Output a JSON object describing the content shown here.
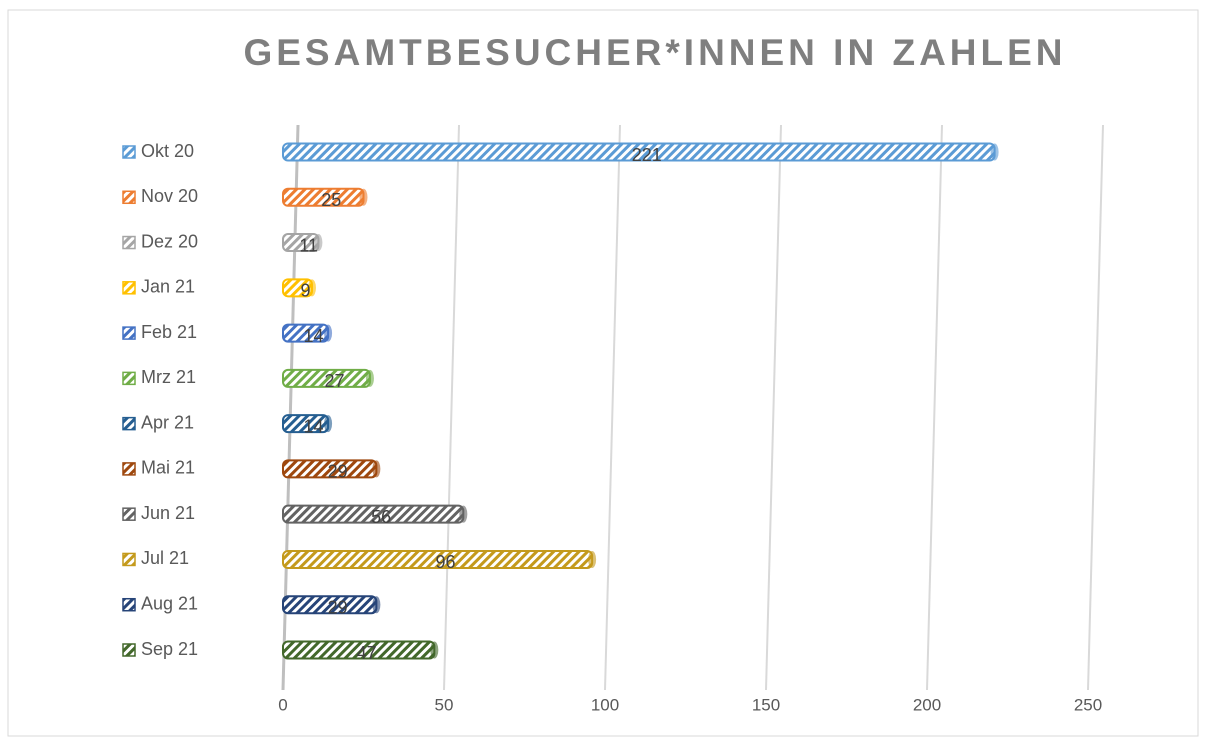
{
  "chart_data": {
    "type": "bar",
    "title": "GESAMTBESUCHER*INNEN IN ZAHLEN",
    "categories": [
      "Okt 20",
      "Nov 20",
      "Dez 20",
      "Jan 21",
      "Feb 21",
      "Mrz 21",
      "Apr 21",
      "Mai 21",
      "Jun 21",
      "Jul 21",
      "Aug 21",
      "Sep 21"
    ],
    "values": [
      221,
      25,
      11,
      9,
      14,
      27,
      14,
      29,
      56,
      96,
      29,
      47
    ],
    "colors": [
      "#5b9bd5",
      "#ed7d31",
      "#a5a5a5",
      "#ffc000",
      "#4472c4",
      "#70ad47",
      "#255e91",
      "#9e480e",
      "#636363",
      "#c49a1c",
      "#264478",
      "#43682b"
    ],
    "xlim": [
      0,
      250
    ],
    "xticks": [
      0,
      50,
      100,
      150,
      200,
      250
    ],
    "grid": true,
    "legend": "left"
  }
}
